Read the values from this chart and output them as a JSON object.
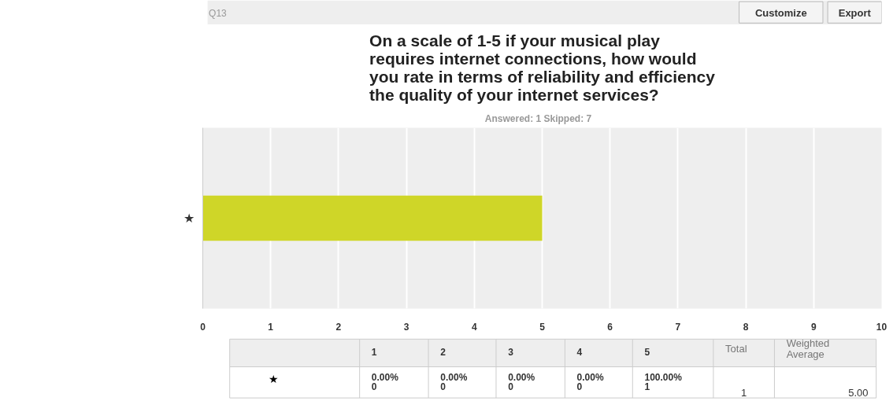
{
  "chart_data": {
    "type": "bar",
    "orientation": "horizontal",
    "title": "On a scale of 1-5 if your musical play\nrequires internet connections, how would\nyou rate in terms of reliability and efficiency\nthe quality of your internet services?",
    "subtitle": "Answered: 1    Skipped: 7",
    "categories": [
      "★"
    ],
    "values": [
      5
    ],
    "color": "#cfd628",
    "xlim": [
      0,
      10
    ],
    "xticks": [
      0,
      1,
      2,
      3,
      4,
      5,
      6,
      7,
      8,
      9,
      10
    ],
    "grid": "x",
    "annotations": [
      "Q13",
      "Customize",
      "Export",
      "1",
      "2",
      "3",
      "4",
      "5",
      "Total",
      "Weighted\nAverage",
      "★",
      "0.00%\n0",
      "0.00%\n0",
      "0.00%\n0",
      "0.00%\n0",
      "100.00%\n1",
      "1",
      "5.00"
    ]
  }
}
